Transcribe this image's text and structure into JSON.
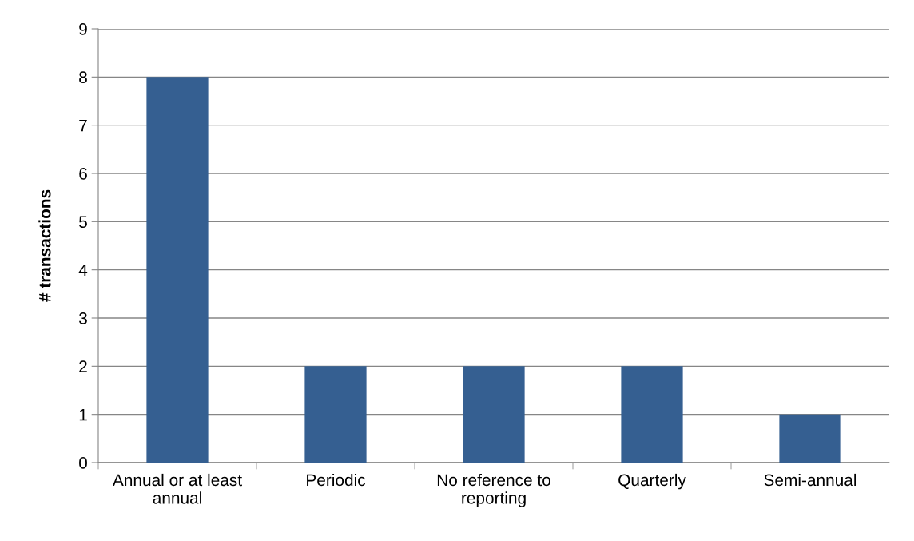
{
  "chart_data": {
    "type": "bar",
    "ylabel": "# transactions",
    "categories": [
      "Annual or at least\nannual",
      "Periodic",
      "No reference to\nreporting",
      "Quarterly",
      "Semi-annual"
    ],
    "values": [
      8,
      2,
      2,
      2,
      1
    ],
    "color": "#355f91",
    "ylim": [
      0,
      9
    ],
    "yticks": [
      0,
      1,
      2,
      3,
      4,
      5,
      6,
      7,
      8,
      9
    ],
    "grid": "y"
  }
}
